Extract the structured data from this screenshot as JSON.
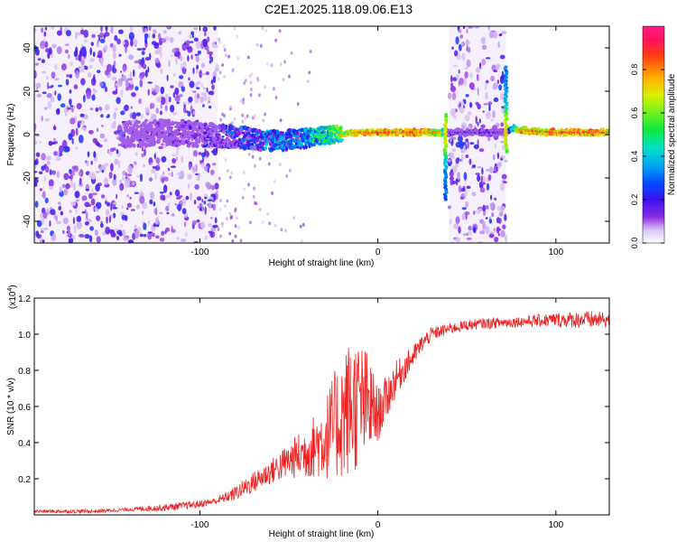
{
  "title": "C2E1.2025.118.09.06.E13",
  "colors": {
    "snr_line": "#ee2222",
    "heat_purple": "#7a1fe6",
    "heat_light": "#c8a8f2",
    "heat_green": "#33dd55",
    "heat_red": "#ff2222",
    "heat_cyan": "#00c8e6"
  },
  "chart_data": [
    {
      "type": "heatmap",
      "title": "C2E1.2025.118.09.06.E13",
      "xlabel": "Height of straight line (km)",
      "ylabel": "Frequency (Hz)",
      "xlim": [
        -193,
        130
      ],
      "ylim": [
        -50,
        50
      ],
      "xticks": [
        -100,
        0,
        100
      ],
      "yticks": [
        -40,
        -20,
        0,
        20,
        40
      ],
      "ytick_labels": [
        "-40",
        "-20",
        "0",
        "20",
        "40"
      ],
      "xtick_labels": [
        "-100",
        "0",
        "100"
      ],
      "colorbar": {
        "label": "Normalized spectral amplitude",
        "range": [
          0,
          1
        ],
        "ticks": [
          "0.0",
          "0.2",
          "0.4",
          "0.6",
          "0.8"
        ],
        "tick_values": [
          0,
          0.2,
          0.4,
          0.6,
          0.8
        ]
      },
      "ridge": {
        "x": [
          -145,
          -120,
          -100,
          -80,
          -60,
          -45,
          -35,
          -25,
          -10,
          0,
          20,
          35,
          38,
          40,
          72,
          75,
          80,
          100,
          120,
          130
        ],
        "freq_hz": [
          0,
          1,
          0,
          -1,
          -3,
          -2,
          -1,
          0,
          1,
          1,
          1,
          1,
          1,
          1,
          1,
          3,
          2,
          1,
          1,
          1
        ],
        "amplitude": [
          0.15,
          0.2,
          0.25,
          0.35,
          0.45,
          0.5,
          0.6,
          0.7,
          0.85,
          0.9,
          0.9,
          0.8,
          0.4,
          0.2,
          0.2,
          0.5,
          0.85,
          0.9,
          0.9,
          0.85
        ]
      },
      "noise_regions": [
        {
          "x": [
            -193,
            -90
          ],
          "density": "high"
        },
        {
          "x": [
            40,
            72
          ],
          "density": "high"
        }
      ]
    },
    {
      "type": "line",
      "xlabel": "Height of straight line (km)",
      "ylabel": "SNR (10 * v/v)",
      "y_multiplier": "(x10",
      "y_multiplier_exp": "4",
      "y_multiplier_close": ")",
      "xlim": [
        -193,
        130
      ],
      "ylim": [
        0,
        1.2
      ],
      "xticks": [
        -100,
        0,
        100
      ],
      "xtick_labels": [
        "-100",
        "0",
        "100"
      ],
      "yticks": [
        0.2,
        0.4,
        0.6,
        0.8,
        1.0,
        1.2
      ],
      "ytick_labels": [
        "0.2",
        "0.4",
        "0.6",
        "0.8",
        "1.0",
        "1.2"
      ],
      "series": [
        {
          "x": [
            -193,
            -160,
            -140,
            -120,
            -100,
            -90,
            -80,
            -70,
            -60,
            -50,
            -40,
            -30,
            -25,
            -20,
            -15,
            -10,
            -5,
            0,
            10,
            20,
            25,
            30,
            40,
            50,
            60,
            80,
            100,
            120,
            130
          ],
          "values": [
            0.02,
            0.02,
            0.03,
            0.04,
            0.06,
            0.08,
            0.12,
            0.18,
            0.24,
            0.3,
            0.35,
            0.42,
            0.48,
            0.55,
            0.6,
            0.62,
            0.6,
            0.55,
            0.75,
            0.88,
            0.95,
            1.0,
            1.03,
            1.05,
            1.06,
            1.07,
            1.08,
            1.08,
            1.08
          ],
          "noise": [
            0.01,
            0.01,
            0.01,
            0.02,
            0.02,
            0.02,
            0.04,
            0.06,
            0.07,
            0.1,
            0.15,
            0.22,
            0.3,
            0.35,
            0.4,
            0.35,
            0.3,
            0.15,
            0.1,
            0.06,
            0.05,
            0.04,
            0.03,
            0.03,
            0.03,
            0.03,
            0.04,
            0.05,
            0.04
          ]
        }
      ]
    }
  ]
}
